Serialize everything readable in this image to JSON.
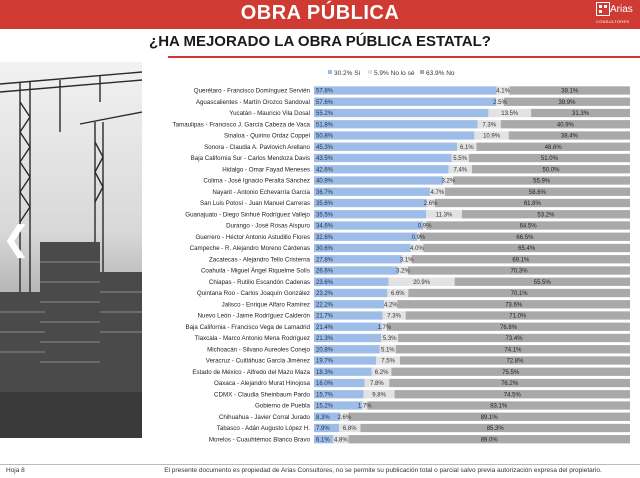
{
  "header": {
    "title": "OBRA PÚBLICA",
    "logo_name": "Arias",
    "logo_sub": "CONSULTORES"
  },
  "subtitle": "¿HA MEJORADO LA OBRA PÚBLICA ESTATAL?",
  "footer": {
    "page_label": "Hoja 8",
    "note": "El presente documento es propiedad de Arias Consultores, no se permite su publicación total o parcial salvo previa autorización expresa del propietario."
  },
  "colors": {
    "header_red": "#cf3a33",
    "si": "#9dbde8",
    "no_lo_se": "#e2e2e2",
    "no": "#a9a9a9"
  },
  "nav": {
    "prev_icon": "chevron-left-icon",
    "prev_glyph": "❮"
  },
  "chart_data": {
    "type": "bar",
    "orientation": "horizontal",
    "stacked": "100%",
    "legend": "top-right",
    "legend_labels": [
      "30.2% Sí",
      "5.9% No lo sé",
      "63.9% No"
    ],
    "categories": [
      "Querétaro - Francisco Domínguez Servién",
      "Aguascalientes - Martín Orozco Sandoval",
      "Yucatán - Mauricio Vila Dosal",
      "Tamaulipas - Francisco J. García Cabeza de Vaca",
      "Sinaloa - Quirino Ordaz Coppel",
      "Sonora - Claudia A. Pavlovich Arellano",
      "Baja California Sur - Carlos Mendoza Davis",
      "Hidalgo - Omar Fayad Meneses",
      "Colima - José Ignacio Peralta Sánchez",
      "Nayarit - Antonio Echevarría García",
      "San Luis Potosí - Juan Manuel Carreras",
      "Guanajuato - Diego Sinhué Rodríguez Vallejo",
      "Durango - José Rosas Aispuro",
      "Guerrero - Héctor Antonio Astudillo Flores",
      "Campeche - R. Alejandro Moreno Cárdenas",
      "Zacatecas - Alejandro Tello Cristerna",
      "Coahuila - Miguel Ángel Riquelme Solís",
      "Chiapas - Rutilio Escandón Cadenas",
      "Quintana Roo - Carlos Joaquín González",
      "Jalisco - Enrique Alfaro Ramírez",
      "Nuevo León - Jaime Rodríguez Calderón",
      "Baja California - Francisco Vega de Lamadrid",
      "Tlaxcala - Marco Antonio Mena Rodríguez",
      "Michoacán - Silvano Aureoles Conejo",
      "Veracruz - Cuitláhuac García Jiménez",
      "Estado de México - Alfredo del Mazo Maza",
      "Oaxaca - Alejandro Murat Hinojosa",
      "CDMX - Claudia Sheinbaum Pardo",
      "Gobierno de Puebla",
      "Chihuahua - Javier Corral Jurado",
      "Tabasco - Adán Augusto López H.",
      "Morelos - Cuauhtémoc Blanco Bravo"
    ],
    "series": [
      {
        "name": "Sí",
        "values": [
          57.8,
          57.6,
          55.2,
          51.8,
          50.8,
          45.3,
          43.5,
          42.6,
          40.9,
          36.7,
          35.6,
          35.5,
          34.6,
          32.6,
          30.6,
          27.8,
          26.6,
          23.6,
          23.2,
          22.2,
          21.7,
          21.4,
          21.3,
          20.8,
          19.7,
          18.3,
          16.0,
          15.7,
          15.2,
          8.3,
          7.9,
          6.1
        ]
      },
      {
        "name": "No lo sé",
        "values": [
          4.1,
          2.5,
          13.5,
          7.3,
          10.9,
          6.1,
          5.5,
          7.4,
          3.2,
          4.7,
          2.6,
          11.3,
          0.9,
          0.9,
          4.0,
          3.1,
          3.2,
          20.9,
          6.6,
          4.2,
          7.3,
          1.7,
          5.3,
          5.1,
          7.5,
          6.2,
          7.8,
          9.8,
          1.7,
          2.6,
          6.8,
          4.8
        ]
      },
      {
        "name": "No",
        "values": [
          38.1,
          39.9,
          31.3,
          40.9,
          38.4,
          48.6,
          51.0,
          50.0,
          55.9,
          58.6,
          61.8,
          53.2,
          64.5,
          66.5,
          65.4,
          69.1,
          70.3,
          55.5,
          70.1,
          73.6,
          71.0,
          76.8,
          73.4,
          74.1,
          72.8,
          75.5,
          76.2,
          74.5,
          83.1,
          89.1,
          85.3,
          89.0
        ]
      }
    ],
    "value_labels": {
      "si": [
        "57.8%",
        "57.6%",
        "55.2%",
        "51.8%",
        "50.8%",
        "45.3%",
        "43.5%",
        "42.6%",
        "40.9%",
        "36.7%",
        "35.6%",
        "35.5%",
        "34.6%",
        "32.6%",
        "30.6%",
        "27.8%",
        "26.6%",
        "23.6%",
        "23.2%",
        "22.2%",
        "21.7%",
        "21.4%",
        "21.3%",
        "20.8%",
        "19.7%",
        "18.3%",
        "16.0%",
        "15.7%",
        "15.2%",
        "8.3%",
        "7.9%",
        "6.1%"
      ],
      "nls": [
        "4.1%",
        "2.5%",
        "13.5%",
        "7.3%",
        "10.9%",
        "6.1%",
        "5.5%",
        "7.4%",
        "3.2%",
        "4.7%",
        "2.6%",
        "11.3%",
        "0.9%",
        "0.9%",
        "4.0%",
        "3.1%",
        "3.2%",
        "20.9%",
        "6.6%",
        "4.2%",
        "7.3%",
        "1.7%",
        "5.3%",
        "5.1%",
        "7.5%",
        "6.2%",
        "7.8%",
        "9.8%",
        "1.7%",
        "2.6%",
        "6.8%",
        "4.8%"
      ],
      "no": [
        "38.1%",
        "39.9%",
        "31.3%",
        "40.9%",
        "38.4%",
        "48.6%",
        "51.0%",
        "50.0%",
        "55.9%",
        "58.6%",
        "61.8%",
        "53.2%",
        "64.5%",
        "66.5%",
        "65.4%",
        "69.1%",
        "70.3%",
        "55.5%",
        "70.1%",
        "73.6%",
        "71.0%",
        "76.8%",
        "73.4%",
        "74.1%",
        "72.8%",
        "75.5%",
        "76.2%",
        "74.5%",
        "83.1%",
        "89.1%",
        "85.3%",
        "89.0%"
      ]
    },
    "xlim": [
      0,
      100
    ]
  }
}
